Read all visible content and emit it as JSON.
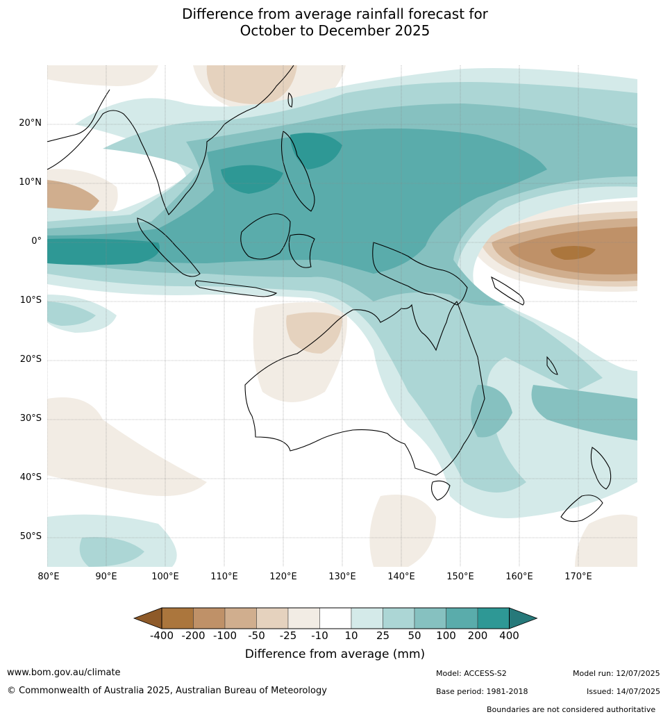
{
  "title": {
    "line1": "Difference from average rainfall forecast for",
    "line2": "October to December 2025"
  },
  "map": {
    "lat_labels": [
      "20°N",
      "10°N",
      "0°",
      "10°S",
      "20°S",
      "30°S",
      "40°S",
      "50°S"
    ],
    "lon_labels": [
      "80°E",
      "90°E",
      "100°E",
      "110°E",
      "120°E",
      "130°E",
      "140°E",
      "150°E",
      "160°E",
      "170°E"
    ],
    "colors": {
      "wet_strong": "#2e9895",
      "wet_200": "#5aacab",
      "wet_100": "#86c1c0",
      "wet_50": "#acd6d5",
      "wet_25": "#d4eae9",
      "neutral": "#ffffff",
      "dry_25": "#f2ece4",
      "dry_50": "#e5d2be",
      "dry_100": "#d0ae8e",
      "dry_200": "#bf9168",
      "dry_strong": "#ab763d",
      "coast": "#000000",
      "border": "#888888",
      "grid": "#888888"
    }
  },
  "legend": {
    "ticks": [
      "-400",
      "-200",
      "-100",
      "-50",
      "-25",
      "-10",
      "10",
      "25",
      "50",
      "100",
      "200",
      "400"
    ],
    "colors": [
      "#ab763d",
      "#bf9168",
      "#d0ae8e",
      "#e5d2be",
      "#f2ece4",
      "#ffffff",
      "#d4eae9",
      "#acd6d5",
      "#86c1c0",
      "#5aacab",
      "#2e9895"
    ],
    "low_extend_color": "#8e5a29",
    "high_extend_color": "#26797a",
    "label": "Difference from average (mm)"
  },
  "footer": {
    "website": "www.bom.gov.au/climate",
    "copyright": "© Commonwealth of Australia 2025, Australian Bureau of Meteorology",
    "model": "Model: ACCESS-S2",
    "base_period": "Base period: 1981-2018",
    "model_run": "Model run: 12/07/2025",
    "issued": "Issued: 14/07/2025",
    "disclaimer": "Boundaries are not considered authoritative"
  }
}
